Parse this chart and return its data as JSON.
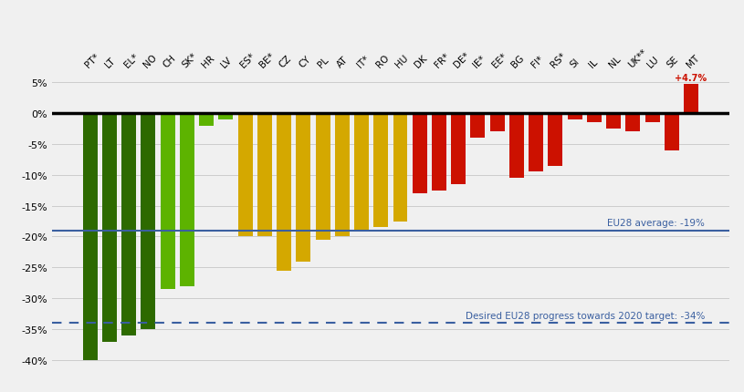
{
  "categories": [
    "PT*",
    "LT",
    "EL*",
    "NO",
    "CH",
    "SK*",
    "HR",
    "LV",
    "ES*",
    "BE*",
    "CZ",
    "CY",
    "PL",
    "AT",
    "IT*",
    "RO",
    "HU",
    "DK",
    "FR*",
    "DE*",
    "IE*",
    "EE*",
    "BG",
    "FI*",
    "RS*",
    "SI",
    "IL",
    "NL",
    "UK**",
    "LU",
    "SE",
    "MT"
  ],
  "values": [
    -40,
    -37,
    -36,
    -35,
    -28.5,
    -28,
    -2,
    -1,
    -20,
    -20,
    -25.5,
    -24,
    -20.5,
    -20,
    -19,
    -18.5,
    -17.5,
    -13,
    -12.5,
    -11.5,
    -4,
    -3,
    -10.5,
    -9.5,
    -8.5,
    -1,
    -1.5,
    -2.5,
    -3,
    -1.5,
    -6,
    4.7
  ],
  "bar_colors": [
    "#2d6a00",
    "#2d6a00",
    "#2d6a00",
    "#2d6a00",
    "#5db300",
    "#5db300",
    "#5db300",
    "#5db300",
    "#d4a800",
    "#d4a800",
    "#d4a800",
    "#d4a800",
    "#d4a800",
    "#d4a800",
    "#d4a800",
    "#d4a800",
    "#d4a800",
    "#cc1100",
    "#cc1100",
    "#cc1100",
    "#cc1100",
    "#cc1100",
    "#cc1100",
    "#cc1100",
    "#cc1100",
    "#cc1100",
    "#cc1100",
    "#cc1100",
    "#cc1100",
    "#cc1100",
    "#cc1100",
    "#cc1100"
  ],
  "eu28_avg": -19,
  "target_line": -34,
  "eu28_label": "EU28 average: -19%",
  "target_label": "Desired EU28 progress towards 2020 target: -34%",
  "mt_label": "+4.7%",
  "ylim": [
    -42,
    7
  ],
  "yticks": [
    5,
    0,
    -5,
    -10,
    -15,
    -20,
    -25,
    -30,
    -35,
    -40
  ],
  "background_color": "#f0f0f0",
  "grid_color": "#cccccc",
  "avg_line_color": "#3a5fa0",
  "target_line_color": "#3a5fa0"
}
